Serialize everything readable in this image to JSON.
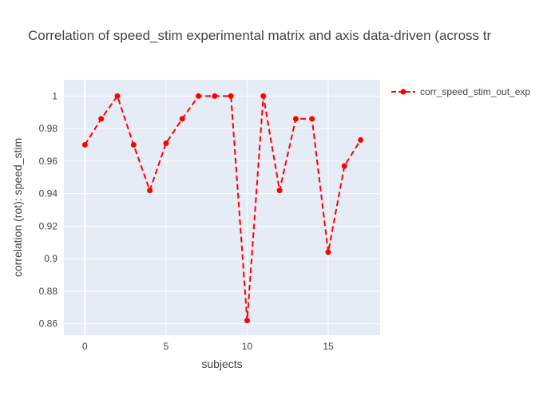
{
  "chart_data": {
    "type": "line",
    "title": "Correlation of speed_stim experimental matrix and axis data-driven (across tr",
    "xlabel": "subjects",
    "ylabel": "correlation (rot): speed_stim",
    "xlim": [
      -1.3,
      18.2
    ],
    "ylim": [
      0.853,
      1.01
    ],
    "xticks": [
      0,
      5,
      10,
      15
    ],
    "yticks": [
      0.86,
      0.88,
      0.9,
      0.92,
      0.94,
      0.96,
      0.98,
      1
    ],
    "ytick_labels": [
      "0.86",
      "0.88",
      "0.9",
      "0.92",
      "0.94",
      "0.96",
      "0.98",
      "1"
    ],
    "grid": true,
    "legend_position": "top-right",
    "series": [
      {
        "name": "corr_speed_stim_out_exp",
        "color": "#ff0000",
        "line_style": "dashed",
        "markers": true,
        "x": [
          0,
          1,
          2,
          3,
          4,
          5,
          6,
          7,
          8,
          9,
          10,
          11,
          12,
          13,
          14,
          15,
          16,
          17
        ],
        "y": [
          0.97,
          0.986,
          1.0,
          0.97,
          0.942,
          0.971,
          0.986,
          1.0,
          1.0,
          1.0,
          0.862,
          1.0,
          0.942,
          0.986,
          0.986,
          0.904,
          0.957,
          0.973
        ]
      }
    ]
  }
}
